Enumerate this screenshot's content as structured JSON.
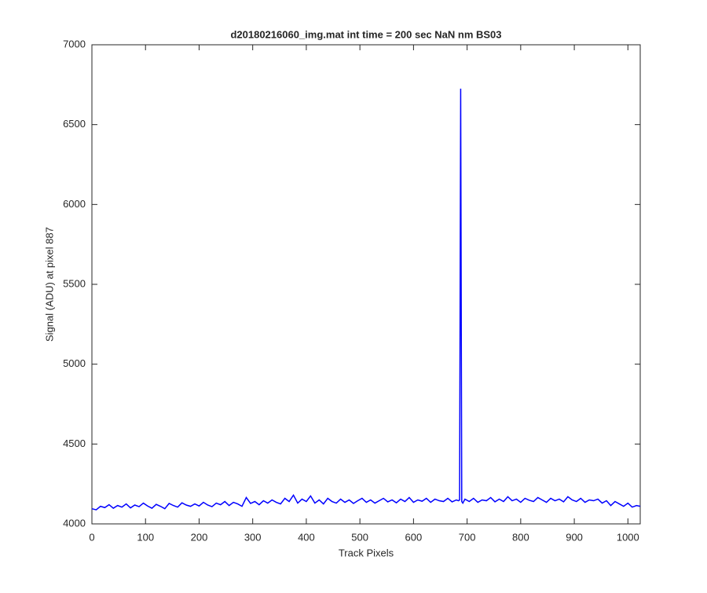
{
  "chart_data": {
    "type": "line",
    "title": "d20180216060_img.mat int time = 200 sec  NaN nm BS03",
    "xlabel": "Track Pixels",
    "ylabel": "Signal (ADU) at pixel 887",
    "xlim": [
      0,
      1023
    ],
    "ylim": [
      4000,
      7000
    ],
    "xticks": [
      0,
      100,
      200,
      300,
      400,
      500,
      600,
      700,
      800,
      900,
      1000
    ],
    "yticks": [
      4000,
      4500,
      5000,
      5500,
      6000,
      6500,
      7000
    ],
    "grid": false,
    "series": [
      {
        "color": "#0000ff",
        "x": [
          0,
          8,
          16,
          24,
          32,
          40,
          48,
          56,
          64,
          72,
          80,
          88,
          96,
          104,
          112,
          120,
          128,
          136,
          144,
          152,
          160,
          168,
          176,
          184,
          192,
          200,
          208,
          216,
          224,
          232,
          240,
          248,
          256,
          264,
          272,
          280,
          288,
          296,
          304,
          312,
          320,
          328,
          336,
          344,
          352,
          360,
          368,
          376,
          384,
          392,
          400,
          408,
          416,
          424,
          432,
          440,
          448,
          456,
          464,
          472,
          480,
          488,
          496,
          504,
          512,
          520,
          528,
          536,
          544,
          552,
          560,
          568,
          576,
          584,
          592,
          600,
          608,
          616,
          624,
          632,
          640,
          648,
          656,
          664,
          672,
          680,
          684,
          686,
          688,
          690,
          692,
          696,
          704,
          712,
          720,
          728,
          736,
          744,
          752,
          760,
          768,
          776,
          784,
          792,
          800,
          808,
          816,
          824,
          832,
          840,
          848,
          856,
          864,
          872,
          880,
          888,
          896,
          904,
          912,
          920,
          928,
          936,
          944,
          952,
          960,
          968,
          976,
          984,
          992,
          1000,
          1008,
          1016,
          1023
        ],
        "values": [
          4095,
          4088,
          4110,
          4102,
          4120,
          4098,
          4115,
          4105,
          4125,
          4100,
          4118,
          4108,
          4130,
          4112,
          4098,
          4122,
          4110,
          4095,
          4128,
          4115,
          4105,
          4132,
          4118,
          4110,
          4125,
          4112,
          4135,
          4118,
          4108,
          4130,
          4120,
          4140,
          4115,
          4135,
          4125,
          4110,
          4165,
          4128,
          4140,
          4120,
          4145,
          4130,
          4150,
          4135,
          4125,
          4160,
          4140,
          4180,
          4130,
          4155,
          4140,
          4175,
          4130,
          4150,
          4125,
          4160,
          4140,
          4130,
          4155,
          4135,
          4150,
          4128,
          4145,
          4160,
          4135,
          4150,
          4130,
          4145,
          4160,
          4138,
          4150,
          4132,
          4155,
          4140,
          4165,
          4135,
          4150,
          4142,
          4160,
          4135,
          4155,
          4145,
          4140,
          4160,
          4138,
          4150,
          4145,
          4150,
          6725,
          4140,
          4130,
          4155,
          4140,
          4160,
          4135,
          4150,
          4145,
          4165,
          4138,
          4155,
          4140,
          4170,
          4145,
          4155,
          4135,
          4160,
          4148,
          4140,
          4165,
          4150,
          4135,
          4160,
          4145,
          4155,
          4138,
          4170,
          4150,
          4140,
          4160,
          4135,
          4150,
          4145,
          4155,
          4130,
          4145,
          4115,
          4140,
          4125,
          4110,
          4130,
          4105,
          4115,
          4110
        ]
      }
    ]
  }
}
